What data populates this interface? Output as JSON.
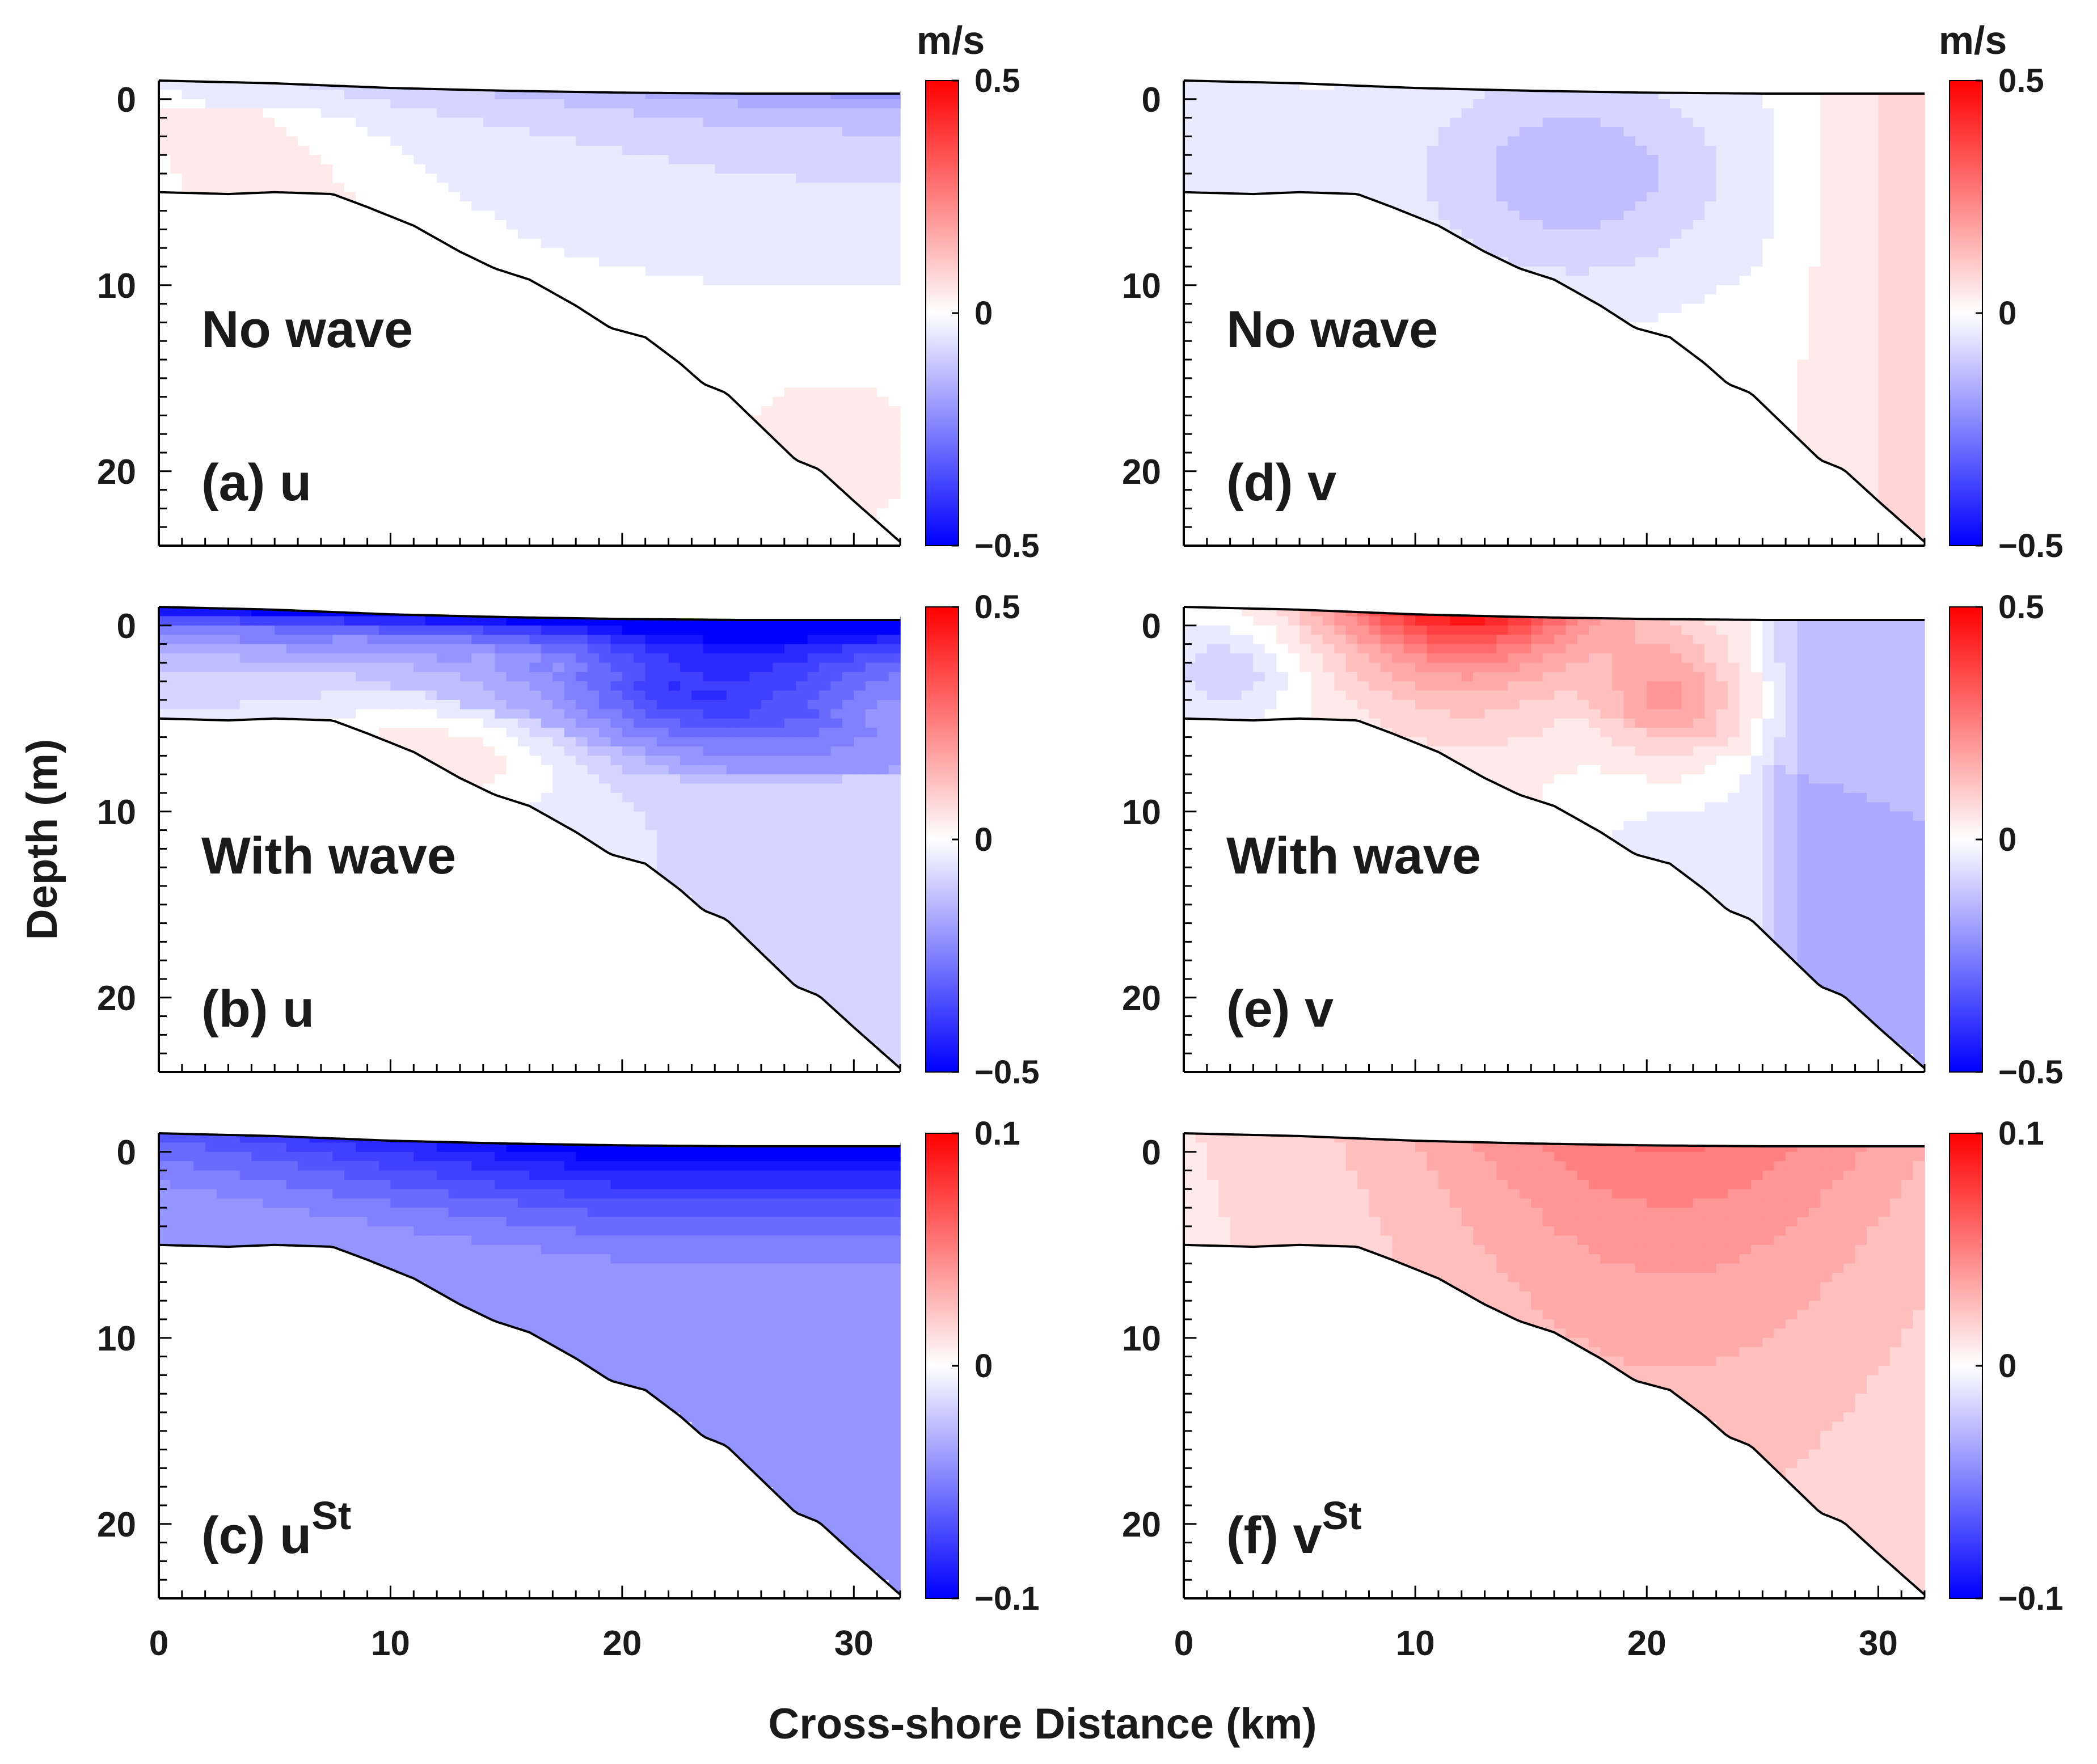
{
  "figure": {
    "xlabel": "Cross-shore Distance (km)",
    "ylabel": "Depth (m)",
    "colorbar_unit": "m/s"
  },
  "chart_data": {
    "type": "heatmap",
    "xlim": [
      0,
      32
    ],
    "ylim": [
      24,
      -1
    ],
    "x_ticks": [
      0,
      10,
      20,
      30
    ],
    "y_ticks": [
      0,
      10,
      20
    ],
    "bathymetry": {
      "x": [
        0,
        3,
        5,
        7.5,
        9,
        11,
        13,
        14.5,
        16,
        18,
        19.5,
        21,
        22.5,
        23.5,
        24.5,
        26,
        27.5,
        28.5,
        30,
        32
      ],
      "depth": [
        5,
        5.1,
        5,
        5.1,
        5.8,
        6.8,
        8.2,
        9.1,
        9.7,
        11.1,
        12.3,
        12.8,
        14.2,
        15.3,
        15.8,
        17.6,
        19.4,
        19.9,
        21.6,
        23.8
      ]
    },
    "surface": {
      "x": [
        0,
        5,
        10,
        15,
        20,
        25,
        32
      ],
      "elevation": [
        -1.0,
        -0.85,
        -0.6,
        -0.45,
        -0.35,
        -0.3,
        -0.3
      ]
    },
    "panels": [
      {
        "id": "a",
        "variable": "u",
        "superscript": "",
        "condition": "No wave",
        "clim": [
          -0.5,
          0.5
        ],
        "colorbar_ticks": [
          "0.5",
          "0",
          "−0.5"
        ],
        "field": {
          "kind": "u_nowave",
          "surface_max": -0.12,
          "deep_max": -0.08,
          "pos": 0.05
        }
      },
      {
        "id": "b",
        "variable": "u",
        "superscript": "",
        "condition": "With wave",
        "clim": [
          -0.5,
          0.5
        ],
        "colorbar_ticks": [
          "0.5",
          "0",
          "−0.5"
        ],
        "field": {
          "kind": "u_wave",
          "surface_max": -0.5,
          "mid": -0.25,
          "interior": -0.05,
          "pos": 0.12
        }
      },
      {
        "id": "c",
        "variable": "u",
        "superscript": "St",
        "condition": "",
        "clim": [
          -0.1,
          0.1
        ],
        "colorbar_ticks": [
          "0.1",
          "0",
          "−0.1"
        ],
        "field": {
          "kind": "ust",
          "surface_max": -0.1,
          "bottom_min": -0.03
        }
      },
      {
        "id": "d",
        "variable": "v",
        "superscript": "",
        "condition": "No wave",
        "clim": [
          -0.5,
          0.5
        ],
        "colorbar_ticks": [
          "0.5",
          "0",
          "−0.5"
        ],
        "field": {
          "kind": "v_nowave",
          "core": -0.13,
          "core_x": 17,
          "offshore": 0.09
        }
      },
      {
        "id": "e",
        "variable": "v",
        "superscript": "",
        "condition": "With wave",
        "clim": [
          -0.5,
          0.5
        ],
        "colorbar_ticks": [
          "0.5",
          "0",
          "−0.5"
        ],
        "field": {
          "kind": "v_wave",
          "jet_max": 0.48,
          "jet_x": 12,
          "offshore": -0.12,
          "nearshore": -0.1
        }
      },
      {
        "id": "f",
        "variable": "v",
        "superscript": "St",
        "condition": "",
        "clim": [
          -0.1,
          0.1
        ],
        "colorbar_ticks": [
          "0.1",
          "0",
          "−0.1"
        ],
        "field": {
          "kind": "vst",
          "max": 0.045,
          "max_x": 21,
          "min": 0.01
        }
      }
    ]
  }
}
